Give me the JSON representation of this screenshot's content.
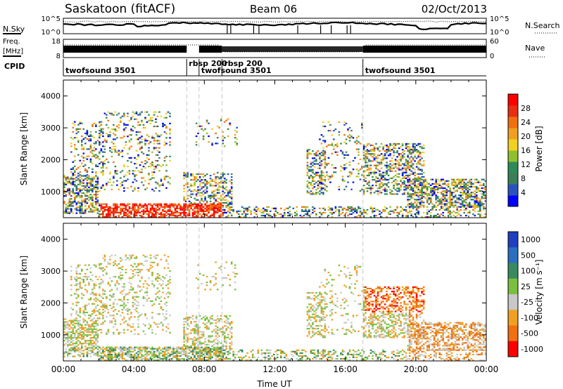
{
  "header": {
    "station": "Saskatoon (fitACF)",
    "beam": "Beam 06",
    "date": "02/Oct/2013"
  },
  "side_labels": {
    "nsky": "N.Sky",
    "nsearch": "N.Search",
    "freq": "Freq.",
    "freq_unit": "[MHz]",
    "nave": "Nave",
    "cpid": "CPID"
  },
  "noise_panel": {
    "left_ticks": [
      "10^5",
      "10^0"
    ],
    "right_ticks": [
      "10^5",
      "10^0"
    ]
  },
  "freq_panel": {
    "left_ticks": [
      "18",
      "8"
    ],
    "right_ticks": [
      "60",
      "0"
    ]
  },
  "cpid_panel": {
    "segments": [
      {
        "start": 0.0,
        "end": 7.0,
        "label": "twofsound 3501"
      },
      {
        "start": 7.0,
        "end": 7.7,
        "label": "rbsp 200"
      },
      {
        "start": 7.7,
        "end": 9.0,
        "label": "twofsound 3501"
      },
      {
        "start": 9.0,
        "end": 17.0,
        "label": "rbsp 200"
      },
      {
        "start": 17.0,
        "end": 24.0,
        "label": "twofsound 3501"
      }
    ]
  },
  "chart_data": [
    {
      "type": "heatmap",
      "name": "Power",
      "ylabel": "Slant Range [km]",
      "xlim": [
        0,
        24
      ],
      "ylim": [
        180,
        4500
      ],
      "yticks": [
        1000,
        2000,
        3000,
        4000
      ],
      "colorbar": {
        "label": "Power [dB]",
        "ticks": [
          "4",
          "8",
          "12",
          "16",
          "20",
          "24",
          "28"
        ],
        "colors": [
          "#0000ff",
          "#2a52be",
          "#3a7f5a",
          "#2e8b57",
          "#90c030",
          "#f0d020",
          "#f0a020",
          "#f07010",
          "#e83010",
          "#ff0000"
        ]
      }
    },
    {
      "type": "heatmap",
      "name": "Velocity",
      "ylabel": "Slant Range [km]",
      "xlabel": "Time UT",
      "xlim": [
        0,
        24
      ],
      "ylim": [
        180,
        4500
      ],
      "yticks": [
        1000,
        2000,
        3000,
        4000
      ],
      "xticks": [
        "00:00",
        "04:00",
        "08:00",
        "12:00",
        "16:00",
        "20:00",
        "00:00"
      ],
      "colorbar": {
        "label": "Velocity [m s⁻¹]",
        "ticks": [
          "1000",
          "500",
          "100",
          "25",
          "-25",
          "-100",
          "-500",
          "-1000"
        ],
        "colors": [
          "#1f3fbf",
          "#2a6fbf",
          "#3a8a60",
          "#7ac040",
          "#c8c8c8",
          "#f0a020",
          "#f07010",
          "#ff0000"
        ]
      }
    }
  ]
}
